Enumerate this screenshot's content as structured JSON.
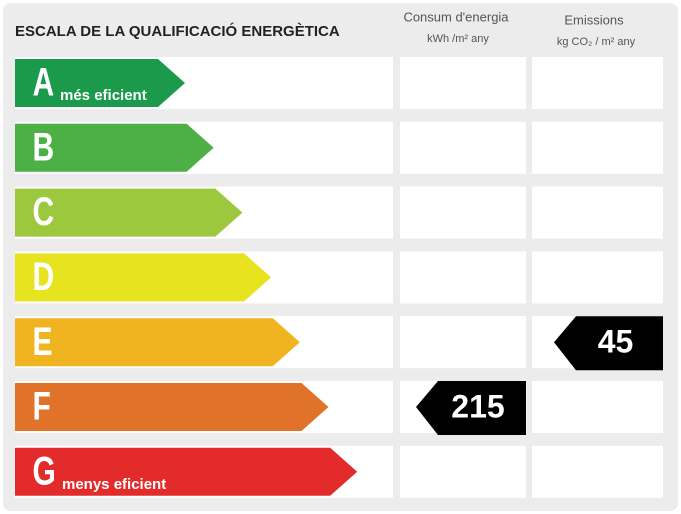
{
  "title": "ESCALA DE LA QUALIFICACIÓ ENERGÈTICA",
  "columns": [
    {
      "name": "Consum d'energia",
      "unit": "kWh /m² any"
    },
    {
      "name": "Emissions",
      "unit": "kg CO₂ / m² any"
    }
  ],
  "rows": [
    {
      "letter": "A",
      "label": "més eficient",
      "color": "#1a9a4a"
    },
    {
      "letter": "B",
      "color": "#4cb047"
    },
    {
      "letter": "C",
      "color": "#9cc83d"
    },
    {
      "letter": "D",
      "color": "#e8e31f"
    },
    {
      "letter": "E",
      "color": "#f0b421"
    },
    {
      "letter": "F",
      "color": "#e07229"
    },
    {
      "letter": "G",
      "label": "menys eficient",
      "color": "#e32b2b"
    }
  ],
  "ratings": [
    {
      "value": 215,
      "class": "F"
    },
    {
      "value": 45,
      "class": "E"
    }
  ]
}
